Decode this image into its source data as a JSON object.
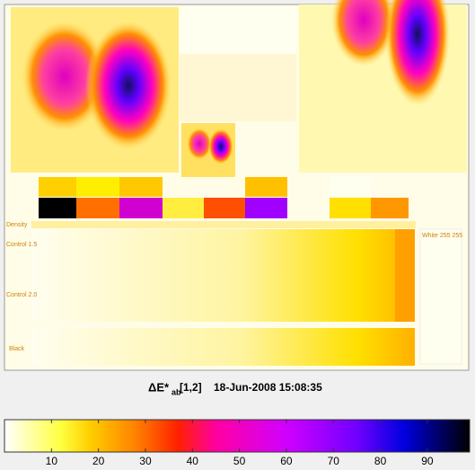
{
  "chart_data": {
    "type": "colorbar",
    "title": "ΔE*",
    "title_subscript": "ab",
    "label": "[1,2]",
    "timestamp": "18-Jun-2008 15:08:35",
    "panel_labels": [
      "Density",
      "Control 1.5",
      "Control 2.0",
      "Black",
      "White 255 255"
    ],
    "xlim": [
      0,
      99
    ],
    "xticks": [
      10,
      20,
      30,
      40,
      50,
      60,
      70,
      80,
      90
    ],
    "colormap": [
      {
        "value": 0,
        "color": "#ffffff"
      },
      {
        "value": 12,
        "color": "#ffff40"
      },
      {
        "value": 18,
        "color": "#ffd000"
      },
      {
        "value": 28,
        "color": "#ff8000"
      },
      {
        "value": 37,
        "color": "#ff2000"
      },
      {
        "value": 45,
        "color": "#ff00a0"
      },
      {
        "value": 60,
        "color": "#d000ff"
      },
      {
        "value": 75,
        "color": "#7000ff"
      },
      {
        "value": 85,
        "color": "#0000e0"
      },
      {
        "value": 99,
        "color": "#000000"
      }
    ]
  }
}
